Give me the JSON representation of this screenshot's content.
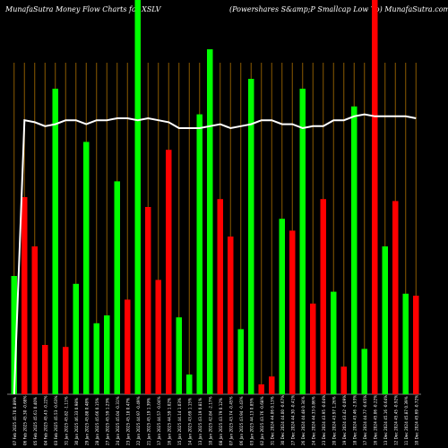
{
  "header": {
    "title_left": "MunafaSutra  Money Flow  Charts for XSLV",
    "title_right": "(Powershares S&amp;P Smallcap Low  Vo) MunafaSutra.com"
  },
  "chart_data": {
    "type": "bar",
    "title": "MunafaSutra  Money Flow  Charts for XSLV",
    "subtitle": "(Powershares S&amp;P Smallcap Low  Vo) MunafaSutra.com",
    "grid": true,
    "ylim": [
      0,
      100
    ],
    "colors": {
      "up": "#00ff00",
      "down": "#ff0000",
      "line": "#ffffff",
      "grid": "#8b5a00",
      "background": "#000000"
    },
    "bars": [
      {
        "label": "07 Feb 2025 45.70 0.89%",
        "value": 30.0,
        "color": "up"
      },
      {
        "label": "06 Feb 2025 45.30 -0.68%",
        "value": 50.0,
        "color": "down"
      },
      {
        "label": "05 Feb 2025 45.61 0.40%",
        "value": 37.5,
        "color": "down"
      },
      {
        "label": "04 Feb 2025 45.43 -0.22%",
        "value": 12.5,
        "color": "down"
      },
      {
        "label": "03 Feb 2025 45.53 -0.63%",
        "value": 77.5,
        "color": "up"
      },
      {
        "label": "31 Jan 2025 45.82 -1.11%",
        "value": 12.0,
        "color": "down"
      },
      {
        "label": "30 Jan 2025 46.33 0.98%",
        "value": 28.0,
        "color": "up"
      },
      {
        "label": "29 Jan 2025 45.88 0.48%",
        "value": 64.0,
        "color": "up"
      },
      {
        "label": "28 Jan 2025 45.66 0.15%",
        "value": 18.0,
        "color": "up"
      },
      {
        "label": "27 Jan 2025 45.59 1.23%",
        "value": 20.0,
        "color": "up"
      },
      {
        "label": "24 Jan 2025 45.04 -0.31%",
        "value": 54.0,
        "color": "up"
      },
      {
        "label": "23 Jan 2025 45.18 0.47%",
        "value": 24.0,
        "color": "down"
      },
      {
        "label": "22 Jan 2025 44.97 -0.49%",
        "value": 100.0,
        "color": "up"
      },
      {
        "label": "21 Jan 2025 45.19 1.39%",
        "value": 47.5,
        "color": "down"
      },
      {
        "label": "17 Jan 2025 44.57 -0.04%",
        "value": 29.0,
        "color": "down"
      },
      {
        "label": "16 Jan 2025 44.59 1.02%",
        "value": 62.0,
        "color": "down"
      },
      {
        "label": "15 Jan 2025 44.14 1.03%",
        "value": 19.5,
        "color": "up"
      },
      {
        "label": "14 Jan 2025 43.69 1.15%",
        "value": 5.0,
        "color": "up"
      },
      {
        "label": "13 Jan 2025 43.19 0.81%",
        "value": 71.0,
        "color": "up"
      },
      {
        "label": "10 Jan 2025 42.84 -2.17%",
        "value": 87.5,
        "color": "up"
      },
      {
        "label": "08 Jan 2025 43.79 0.12%",
        "value": 49.5,
        "color": "down"
      },
      {
        "label": "07 Jan 2025 43.74 -0.45%",
        "value": 40.0,
        "color": "down"
      },
      {
        "label": "06 Jan 2025 43.94 -0.43%",
        "value": 16.5,
        "color": "up"
      },
      {
        "label": "03 Jan 2025 44.13 0.85%",
        "value": 80.0,
        "color": "up"
      },
      {
        "label": "02 Jan 2025 43.76 -0.68%",
        "value": 2.5,
        "color": "down"
      },
      {
        "label": "31 Dec 2024 44.06 0.13%",
        "value": 4.5,
        "color": "down"
      },
      {
        "label": "30 Dec 2024 44.00 -0.67%",
        "value": 44.5,
        "color": "up"
      },
      {
        "label": "27 Dec 2024 44.30 -0.41%",
        "value": 41.5,
        "color": "down"
      },
      {
        "label": "26 Dec 2024 44.48 0.34%",
        "value": 77.5,
        "color": "up"
      },
      {
        "label": "24 Dec 2024 44.33 0.86%",
        "value": 23.0,
        "color": "down"
      },
      {
        "label": "23 Dec 2024 43.95 -0.04%",
        "value": 49.5,
        "color": "down"
      },
      {
        "label": "20 Dec 2024 43.97 1.26%",
        "value": 26.0,
        "color": "up"
      },
      {
        "label": "19 Dec 2024 43.42 -0.09%",
        "value": 7.0,
        "color": "down"
      },
      {
        "label": "18 Dec 2024 43.46 -2.93%",
        "value": 73.0,
        "color": "up"
      },
      {
        "label": "17 Dec 2024 44.77 -0.65%",
        "value": 11.5,
        "color": "up"
      },
      {
        "label": "16 Dec 2024 45.06 -0.22%",
        "value": 100.0,
        "color": "down"
      },
      {
        "label": "13 Dec 2024 45.16 -0.64%",
        "value": 37.5,
        "color": "up"
      },
      {
        "label": "12 Dec 2024 45.45 -0.92%",
        "value": 49.0,
        "color": "down"
      },
      {
        "label": "11 Dec 2024 45.87 0.39%",
        "value": 25.5,
        "color": "up"
      },
      {
        "label": "10 Dec 2024 45.69 -0.72%",
        "value": 25.0,
        "color": "down"
      }
    ],
    "line": [
      0,
      69.5,
      69.0,
      68.0,
      68.5,
      69.5,
      69.5,
      68.5,
      69.5,
      69.5,
      70.0,
      70.0,
      69.5,
      70.0,
      69.5,
      69.0,
      67.5,
      67.5,
      67.5,
      68.0,
      68.5,
      67.5,
      68.0,
      68.5,
      69.5,
      69.5,
      68.5,
      68.5,
      67.5,
      68.0,
      68.0,
      69.5,
      69.5,
      70.5,
      71.0,
      70.5,
      70.5,
      70.5,
      70.5,
      70.0
    ]
  }
}
